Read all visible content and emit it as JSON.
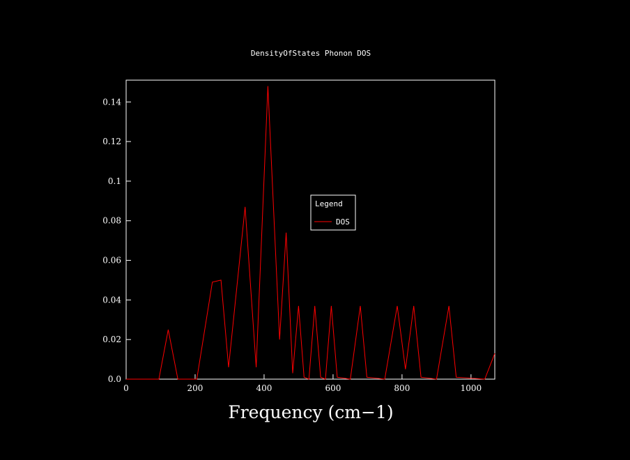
{
  "window": {
    "background": "#000000"
  },
  "chart_data": {
    "type": "line",
    "title": "DensityOfStates Phonon DOS",
    "xlabel": "Frequency (cm−1)",
    "ylabel": "",
    "grid": false,
    "plot_bg": "#000000",
    "frame_color": "#ffffff",
    "xlim": [
      0,
      1069
    ],
    "ylim": [
      0,
      0.151
    ],
    "xticks": [
      {
        "value": 0,
        "label": "0"
      },
      {
        "value": 200,
        "label": "200"
      },
      {
        "value": 400,
        "label": "400"
      },
      {
        "value": 600,
        "label": "600"
      },
      {
        "value": 800,
        "label": "800"
      },
      {
        "value": 1000,
        "label": "1000"
      }
    ],
    "yticks": [
      {
        "value": 0.0,
        "label": "0.0"
      },
      {
        "value": 0.02,
        "label": "0.02"
      },
      {
        "value": 0.04,
        "label": "0.04"
      },
      {
        "value": 0.06,
        "label": "0.06"
      },
      {
        "value": 0.08,
        "label": "0.08"
      },
      {
        "value": 0.1,
        "label": "0.1"
      },
      {
        "value": 0.12,
        "label": "0.12"
      },
      {
        "value": 0.14,
        "label": "0.14"
      }
    ],
    "series": [
      {
        "name": "DOS",
        "color": "#ff0000",
        "x": [
          0,
          95,
          122,
          150,
          205,
          250,
          275,
          297,
          345,
          377,
          411,
          445,
          464,
          483,
          500,
          516,
          530,
          547,
          564,
          578,
          595,
          612,
          650,
          679,
          698,
          750,
          786,
          810,
          834,
          855,
          900,
          936,
          957,
          1040,
          1069
        ],
        "y": [
          0,
          0,
          0.025,
          0,
          0,
          0.049,
          0.05,
          0.006,
          0.087,
          0.006,
          0.148,
          0.02,
          0.074,
          0.003,
          0.037,
          0.001,
          0,
          0.037,
          0.001,
          0,
          0.037,
          0.001,
          0,
          0.037,
          0.001,
          0,
          0.037,
          0.005,
          0.037,
          0.001,
          0,
          0.037,
          0.001,
          0,
          0.013
        ]
      }
    ],
    "legend": {
      "title": "Legend",
      "position": "center",
      "entries": [
        {
          "label": "DOS",
          "color": "#ff0000"
        }
      ]
    }
  }
}
